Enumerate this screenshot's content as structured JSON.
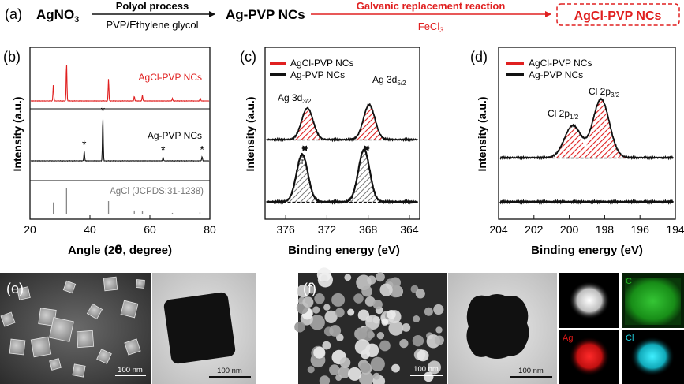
{
  "scheme": {
    "panel": "(a)",
    "precursor": "AgNO",
    "precursor_sub": "3",
    "arrow1_top": "Polyol process",
    "arrow1_bottom": "PVP/Ethylene glycol",
    "intermediate": "Ag-PVP NCs",
    "arrow2_top": "Galvanic replacement reaction",
    "arrow2_bottom_main": "FeCl",
    "arrow2_bottom_sub": "3",
    "product": "AgCl-PVP NCs",
    "colors": {
      "red": "#e02020",
      "black": "#111111"
    }
  },
  "xrd": {
    "panel": "(b)",
    "ylabel": "Intensity (a.u.)",
    "xlabel_pre": "Angle (2",
    "xlabel_theta": "θ",
    "xlabel_post": ", degree)",
    "label_agcl_pvp": "AgCl-PVP NCs",
    "label_ag_pvp": "Ag-PVP NCs",
    "label_ref": "AgCl (JCPDS:31-1238)",
    "star": "*"
  },
  "xps_ag": {
    "panel": "(c)",
    "legend": [
      "AgCl-PVP NCs",
      "Ag-PVP NCs"
    ],
    "peak_label_1_main": "Ag 3d",
    "peak_label_1_sub": "3/2",
    "peak_label_2_main": "Ag 3d",
    "peak_label_2_sub": "5/2",
    "ylabel": "Intensity (a.u.)",
    "xlabel": "Binding energy (eV)"
  },
  "xps_cl": {
    "panel": "(d)",
    "legend": [
      "AgCl-PVP NCs",
      "Ag-PVP NCs"
    ],
    "peak_label_1_main": "Cl 2p",
    "peak_label_1_sub": "1/2",
    "peak_label_2_main": "Cl 2p",
    "peak_label_2_sub": "3/2",
    "ylabel": "Intensity (a.u.)",
    "xlabel": "Binding energy (eV)"
  },
  "micrographs": {
    "panel_e": "(e)",
    "panel_f": "(f)",
    "scale_e_sem": "100 nm",
    "scale_e_tem": "100 nm",
    "scale_f_sem": "100 nm",
    "scale_f_tem": "100 nm",
    "map_labels": [
      "C",
      "Ag",
      "Cl"
    ],
    "map_colors": {
      "C": "#22b822",
      "Ag": "#e01818",
      "Cl": "#20d0e0"
    }
  },
  "chart_data": [
    {
      "type": "line",
      "id": "xrd",
      "xlabel": "Angle (2θ, degree)",
      "ylabel": "Intensity (a.u.)",
      "xlim": [
        20,
        80
      ],
      "xticks": [
        20,
        40,
        60,
        80
      ],
      "series": [
        {
          "name": "AgCl-PVP NCs",
          "color": "#e02020",
          "peaks": [
            [
              27.8,
              0.35
            ],
            [
              32.2,
              0.8
            ],
            [
              46.2,
              0.46
            ],
            [
              54.8,
              0.1
            ],
            [
              57.5,
              0.12
            ],
            [
              67.5,
              0.05
            ],
            [
              76.8,
              0.06
            ]
          ]
        },
        {
          "name": "Ag-PVP NCs",
          "color": "#111111",
          "peaks": [
            [
              38.1,
              0.2
            ],
            [
              44.3,
              0.92
            ],
            [
              64.4,
              0.08
            ],
            [
              77.4,
              0.09
            ]
          ]
        },
        {
          "name": "AgCl (JCPDS:31-1238)",
          "color": "#888888",
          "peaks": [
            [
              27.8,
              0.45
            ],
            [
              32.2,
              1.0
            ],
            [
              46.2,
              0.5
            ],
            [
              54.8,
              0.15
            ],
            [
              57.5,
              0.12
            ],
            [
              67.5,
              0.06
            ],
            [
              76.7,
              0.08
            ]
          ]
        }
      ]
    },
    {
      "type": "line",
      "id": "xps_ag",
      "xlabel": "Binding energy (eV)",
      "ylabel": "Intensity (a.u.)",
      "xlim": [
        378,
        363
      ],
      "xticks": [
        376,
        372,
        368,
        364
      ],
      "series": [
        {
          "name": "AgCl-PVP NCs",
          "color": "#e02020",
          "peaks": [
            [
              373.9,
              1.0
            ],
            [
              367.9,
              1.1
            ]
          ],
          "fwhm": 1.3
        },
        {
          "name": "Ag-PVP NCs",
          "color": "#111111",
          "peaks": [
            [
              374.4,
              1.0
            ],
            [
              368.4,
              1.1
            ]
          ],
          "fwhm": 1.3
        }
      ]
    },
    {
      "type": "line",
      "id": "xps_cl",
      "xlabel": "Binding energy (eV)",
      "ylabel": "Intensity (a.u.)",
      "xlim": [
        204,
        194
      ],
      "xticks": [
        204,
        202,
        200,
        198,
        196,
        194
      ],
      "series": [
        {
          "name": "AgCl-PVP NCs",
          "color": "#e02020",
          "peaks": [
            [
              199.8,
              0.55
            ],
            [
              198.2,
              1.0
            ]
          ],
          "fwhm": 1.1
        },
        {
          "name": "Ag-PVP NCs",
          "color": "#111111",
          "peaks": []
        }
      ]
    }
  ]
}
